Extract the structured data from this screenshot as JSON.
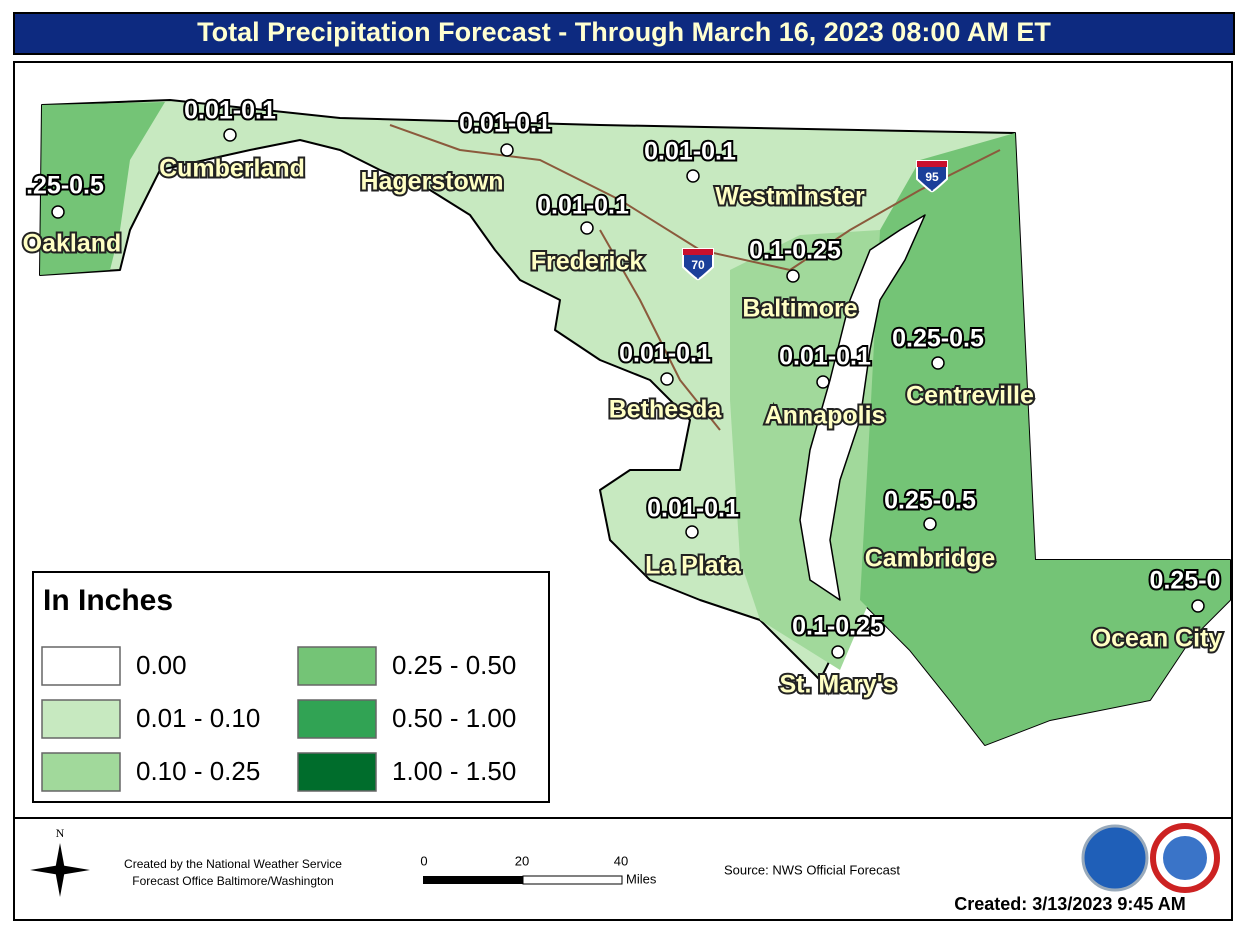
{
  "title": "Total Precipitation Forecast - Through March 16, 2023 08:00 AM ET",
  "map": {
    "cities": [
      {
        "name": "Cumberland",
        "amount": "0.01-0.1"
      },
      {
        "name": "Hagerstown",
        "amount": "0.01-0.1"
      },
      {
        "name": "Oakland",
        "amount": ".25-0.5"
      },
      {
        "name": "Westminster",
        "amount": "0.01-0.1"
      },
      {
        "name": "Frederick",
        "amount": "0.01-0.1"
      },
      {
        "name": "Baltimore",
        "amount": "0.1-0.25"
      },
      {
        "name": "Bethesda",
        "amount": "0.01-0.1"
      },
      {
        "name": "Annapolis",
        "amount": "0.01-0.1"
      },
      {
        "name": "Centreville",
        "amount": "0.25-0.5"
      },
      {
        "name": "Cambridge",
        "amount": "0.25-0.5"
      },
      {
        "name": "La Plata",
        "amount": "0.01-0.1"
      },
      {
        "name": "St. Mary's",
        "amount": "0.1-0.25"
      },
      {
        "name": "Ocean City",
        "amount": "0.25-0"
      }
    ],
    "interstates": [
      "95",
      "70"
    ]
  },
  "legend": {
    "title": "In Inches",
    "items": [
      {
        "label": "0.00",
        "color": "#ffffff"
      },
      {
        "label": "0.01 - 0.10",
        "color": "#c7e9c0"
      },
      {
        "label": "0.10 - 0.25",
        "color": "#a1d99b"
      },
      {
        "label": "0.25 - 0.50",
        "color": "#74c476"
      },
      {
        "label": "0.50 - 1.00",
        "color": "#31a354"
      },
      {
        "label": "1.00 - 1.50",
        "color": "#006d2c"
      }
    ]
  },
  "footer": {
    "north": "N",
    "credit": [
      "Created by the National Weather Service",
      "Forecast Office Baltimore/Washington"
    ],
    "scale": {
      "ticks": [
        "0",
        "20",
        "40"
      ],
      "unit": "Miles"
    },
    "source": "Source: NWS Official Forecast",
    "created": "Created: 3/13/2023 9:45 AM"
  }
}
